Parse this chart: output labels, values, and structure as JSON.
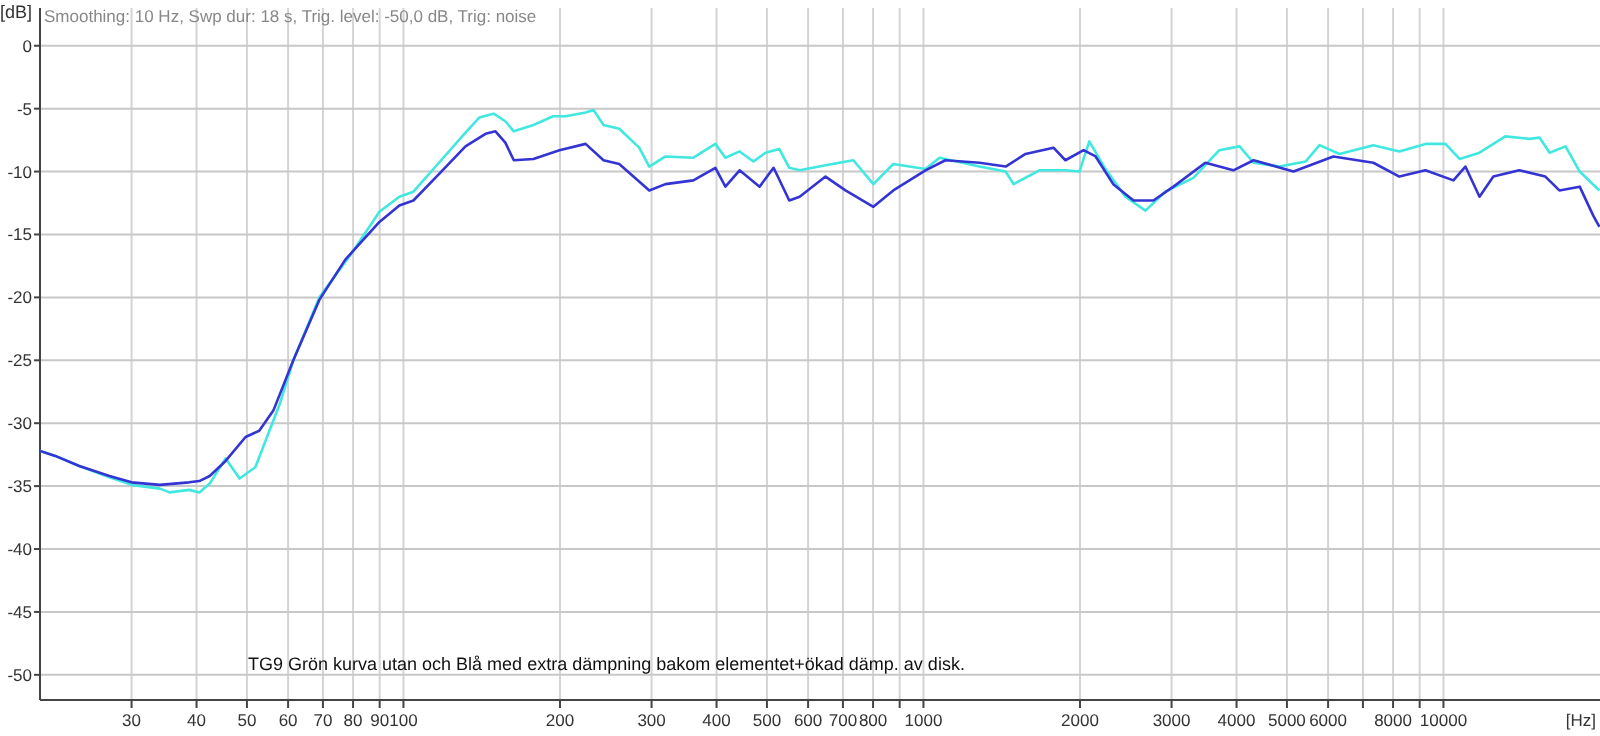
{
  "chart_data": {
    "type": "line",
    "xlabel": "[Hz]",
    "ylabel": "[dB]",
    "log": "x",
    "grid": true,
    "marker": "none",
    "line_style": "solid",
    "xlim": [
      20,
      20000
    ],
    "ylim": [
      -52,
      3
    ],
    "xticks": [
      30,
      40,
      50,
      60,
      70,
      80,
      90,
      100,
      200,
      300,
      400,
      500,
      600,
      700,
      800,
      {
        "value": 900,
        "label": null
      },
      1000,
      2000,
      3000,
      4000,
      5000,
      6000,
      {
        "value": 7000,
        "label": null
      },
      8000,
      {
        "value": 9000,
        "label": null
      },
      10000
    ],
    "yticks": [
      0,
      -5,
      -10,
      -15,
      -20,
      -25,
      -30,
      -35,
      -40,
      -45,
      -50
    ],
    "annotations": [
      "Smoothing: 10 Hz, Swp dur: 18 s, Trig. level: -50,0 dB, Trig: noise",
      "TG9 Grön kurva utan och Blå med extra dämpning bakom elementet+ökad dämp. av disk."
    ],
    "series": [
      {
        "color": "#40e8e0",
        "x": [
          20,
          21.4,
          23.8,
          27.2,
          30,
          34,
          35.5,
          38.7,
          40.5,
          42.4,
          45.5,
          48.4,
          51.9,
          54.3,
          57.8,
          61.4,
          68.9,
          80.1,
          89.9,
          98.2,
          104.5,
          117,
          131.6,
          140,
          149,
          157,
          163,
          177.8,
          194,
          205,
          224,
          232,
          242.5,
          260,
          284,
          297,
          319,
          361,
          398,
          416,
          443,
          471,
          497,
          528,
          552,
          578,
          648,
          733,
          801,
          875,
          1009,
          1074,
          1282,
          1439,
          1490,
          1671,
          1875,
          1995,
          2084,
          2239,
          2445,
          2673,
          2917,
          3304,
          3706,
          4055,
          4313,
          4839,
          5430,
          5776,
          6310,
          7331,
          8226,
          9232,
          10090,
          10740,
          11730,
          13150,
          14620,
          15300,
          16000,
          17170,
          18280,
          19950
        ],
        "values": [
          -32.2,
          -32.6,
          -33.4,
          -34.3,
          -34.9,
          -35.2,
          -35.5,
          -35.3,
          -35.5,
          -34.8,
          -32.8,
          -34.4,
          -33.5,
          -31.4,
          -28.5,
          -25.0,
          -20.0,
          -16.3,
          -13.2,
          -12.0,
          -11.6,
          -9.3,
          -6.9,
          -5.7,
          -5.4,
          -6.0,
          -6.8,
          -6.3,
          -5.6,
          -5.6,
          -5.3,
          -5.1,
          -6.3,
          -6.6,
          -8.1,
          -9.6,
          -8.8,
          -8.9,
          -7.8,
          -8.9,
          -8.4,
          -9.2,
          -8.5,
          -8.2,
          -9.7,
          -9.9,
          -9.5,
          -9.1,
          -11.0,
          -9.4,
          -9.8,
          -8.9,
          -9.6,
          -10.0,
          -11.0,
          -9.9,
          -9.9,
          -10.0,
          -7.6,
          -9.8,
          -12.0,
          -13.1,
          -11.6,
          -10.5,
          -8.3,
          -8.0,
          -9.3,
          -9.6,
          -9.2,
          -7.9,
          -8.6,
          -7.9,
          -8.4,
          -7.8,
          -7.8,
          -9.0,
          -8.5,
          -7.2,
          -7.4,
          -7.3,
          -8.5,
          -8.0,
          -10.0,
          -11.5
        ]
      },
      {
        "color": "#3434d4",
        "x": [
          20,
          21.4,
          23.8,
          27.2,
          30,
          34,
          38.7,
          40.5,
          42.4,
          45.5,
          49.7,
          52.8,
          56.2,
          61.4,
          68.9,
          77.3,
          89.9,
          98.2,
          104.5,
          117,
          131.6,
          143.8,
          150.3,
          157,
          163,
          177.8,
          199.5,
          224,
          242.5,
          260,
          297,
          319,
          361,
          398,
          416,
          443,
          484,
          515,
          552,
          578,
          648,
          708,
          801,
          875,
          1009,
          1102,
          1282,
          1439,
          1571,
          1778,
          1875,
          2032,
          2143,
          2317,
          2535,
          2768,
          3025,
          3484,
          3945,
          4313,
          5148,
          6141,
          7331,
          8226,
          9232,
          10450,
          11020,
          11730,
          12470,
          13990,
          15700,
          16710,
          18280,
          19410,
          19950
        ],
        "values": [
          -32.2,
          -32.6,
          -33.4,
          -34.2,
          -34.7,
          -34.9,
          -34.7,
          -34.6,
          -34.2,
          -33.0,
          -31.1,
          -30.6,
          -29.0,
          -25.0,
          -20.2,
          -17.0,
          -14.0,
          -12.7,
          -12.3,
          -10.2,
          -8.0,
          -7.0,
          -6.8,
          -7.7,
          -9.1,
          -9.0,
          -8.3,
          -7.8,
          -9.1,
          -9.4,
          -11.5,
          -11.0,
          -10.7,
          -9.7,
          -11.2,
          -9.9,
          -11.2,
          -9.7,
          -12.3,
          -12.0,
          -10.4,
          -11.5,
          -12.8,
          -11.5,
          -9.9,
          -9.1,
          -9.3,
          -9.6,
          -8.6,
          -8.1,
          -9.1,
          -8.3,
          -8.8,
          -11.0,
          -12.3,
          -12.3,
          -11.2,
          -9.3,
          -9.9,
          -9.1,
          -10.0,
          -8.8,
          -9.3,
          -10.4,
          -9.9,
          -10.7,
          -9.6,
          -12.0,
          -10.4,
          -9.9,
          -10.4,
          -11.5,
          -11.2,
          -13.5,
          -14.4
        ]
      }
    ]
  }
}
